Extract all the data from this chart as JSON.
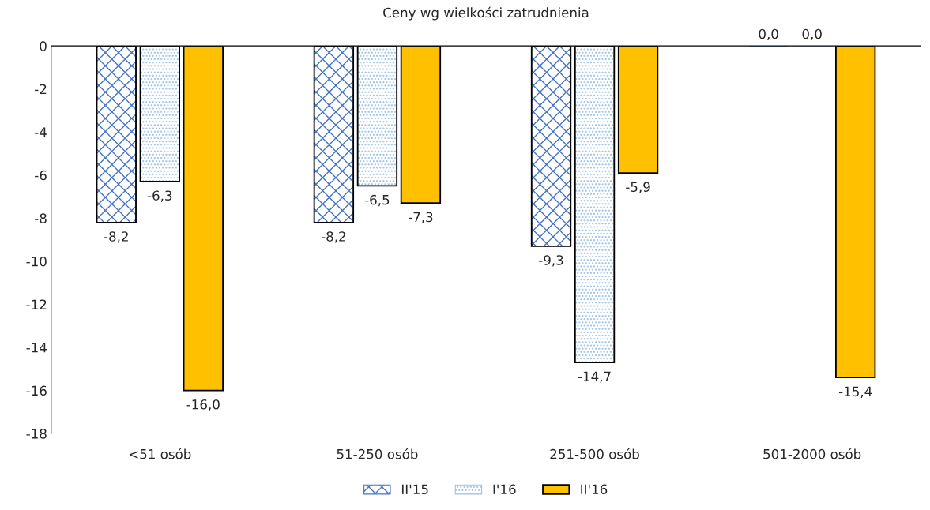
{
  "chart_data": {
    "type": "bar",
    "title": "Ceny wg wielkości zatrudnienia",
    "categories": [
      "<51 osób",
      "51-250 osób",
      "251-500 osób",
      "501-2000 osób"
    ],
    "series": [
      {
        "name": "II'15",
        "color": "#4472c4",
        "values": [
          -8.2,
          -8.2,
          -9.3,
          0
        ],
        "value_labels": [
          "-8,2",
          "-8,2",
          "-9,3",
          "0,0"
        ]
      },
      {
        "name": "I'16",
        "color": "#9dc3e6",
        "values": [
          -6.3,
          -6.5,
          -14.7,
          0
        ],
        "value_labels": [
          "-6,3",
          "-6,5",
          "-14,7",
          "0,0"
        ]
      },
      {
        "name": "II'16",
        "color": "#ffc000",
        "values": [
          -16.0,
          -7.3,
          -5.9,
          -15.4
        ],
        "value_labels": [
          "-16,0",
          "-7,3",
          "-5,9",
          "-15,4"
        ]
      }
    ],
    "ylim": [
      -18,
      0
    ],
    "yticks": [
      -18,
      -16,
      -14,
      -12,
      -10,
      -8,
      -6,
      -4,
      -2,
      0
    ],
    "grid": false,
    "legend": "bottom"
  }
}
